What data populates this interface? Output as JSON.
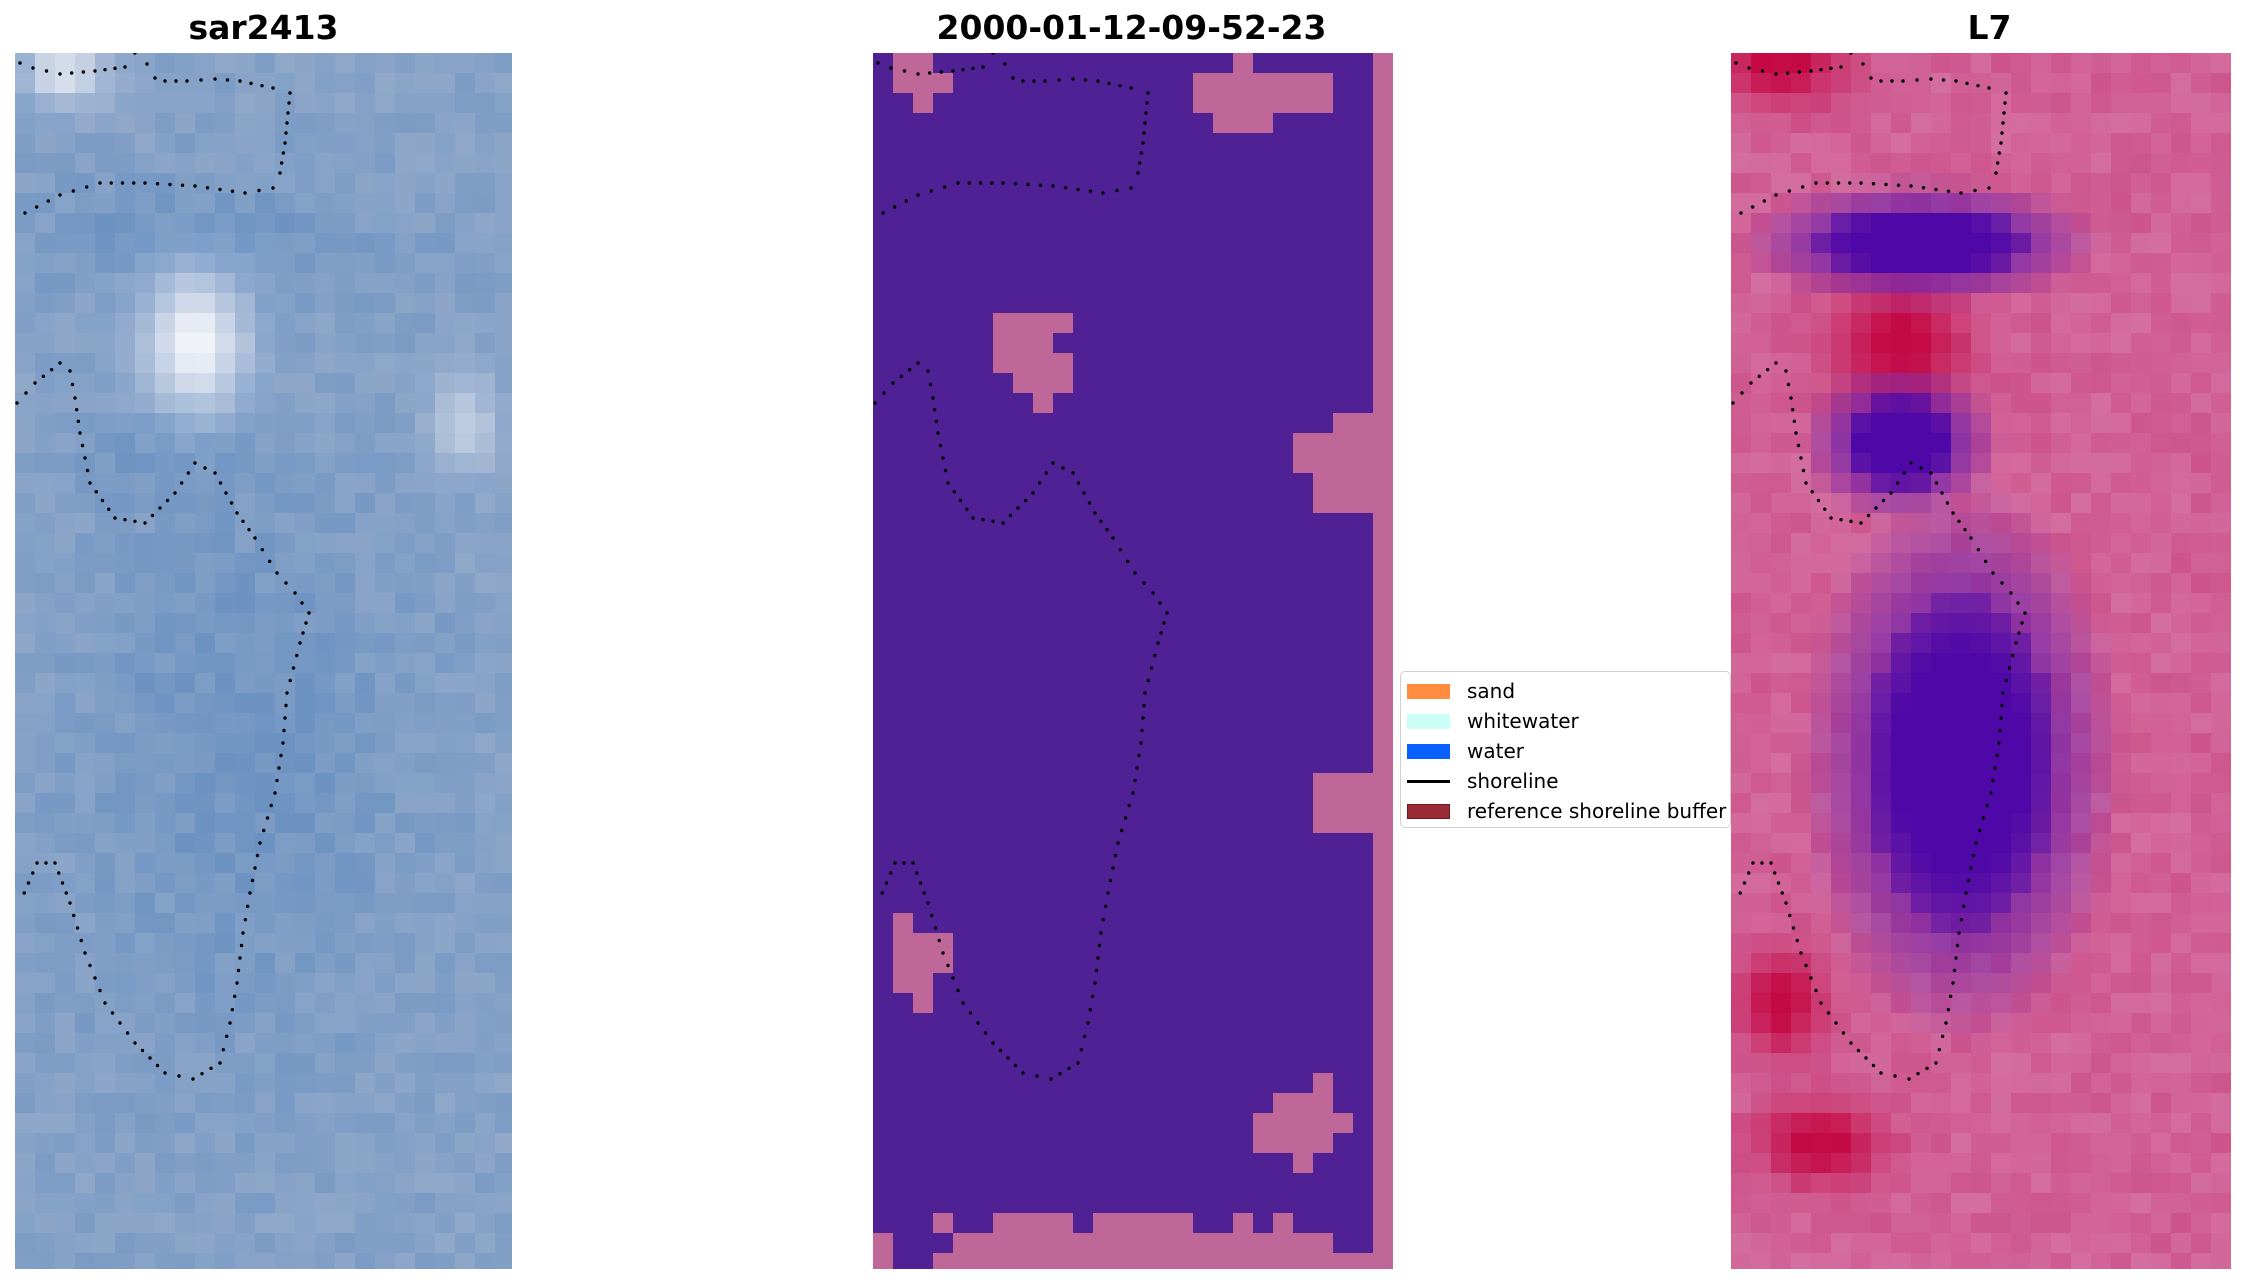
{
  "panels": [
    {
      "title": "sar2413",
      "type": "rgb"
    },
    {
      "title": "2000-01-12-09-52-23",
      "type": "classified"
    },
    {
      "title": "L7",
      "type": "index"
    }
  ],
  "legend": {
    "items": [
      {
        "label": "sand",
        "color": "#ff8c3f",
        "kind": "patch"
      },
      {
        "label": "whitewater",
        "color": "#ccfff7",
        "kind": "patch"
      },
      {
        "label": "water",
        "color": "#0760ff",
        "kind": "patch"
      },
      {
        "label": "shoreline",
        "color": "#000000",
        "kind": "line"
      },
      {
        "label": "reference shoreline buffer",
        "color": "#9b2b34",
        "kind": "patch",
        "edge": "#6b1a20"
      }
    ]
  },
  "colors": {
    "water_class": "#4f2195",
    "buffer_overlay": "#c0679a",
    "rgb_base": "#6f93c2",
    "index_high": "#c3004a",
    "index_low": "#4a00a8"
  }
}
